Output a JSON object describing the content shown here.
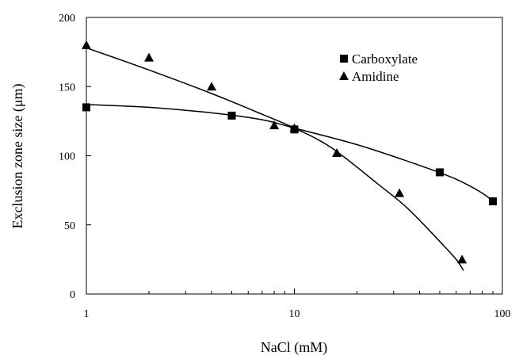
{
  "chart_data": {
    "type": "scatter",
    "title": "",
    "xlabel": "NaCl (mM)",
    "ylabel": "Exclusion zone size (μm)",
    "xscale": "log",
    "xlim": [
      1,
      100
    ],
    "ylim": [
      0,
      200
    ],
    "xticks": [
      1,
      10,
      100
    ],
    "xtick_labels": [
      "1",
      "10",
      "100"
    ],
    "yticks": [
      0,
      50,
      100,
      150,
      200
    ],
    "ytick_labels": [
      "0",
      "50",
      "100",
      "150",
      "200"
    ],
    "grid": false,
    "legend_position": "top-right",
    "series": [
      {
        "name": "Carboxylate",
        "marker": "square",
        "color": "#000000",
        "x": [
          1,
          5,
          10,
          50,
          90
        ],
        "y": [
          135,
          129,
          119,
          88,
          67
        ],
        "trend": {
          "x": [
            1,
            2,
            4,
            7,
            10,
            20,
            40,
            60,
            80,
            90
          ],
          "y": [
            137,
            135,
            131,
            126,
            120,
            108,
            93,
            83,
            73,
            67
          ]
        }
      },
      {
        "name": "Amidine",
        "marker": "triangle",
        "color": "#000000",
        "x": [
          1,
          2,
          4,
          8,
          10,
          16,
          32,
          64
        ],
        "y": [
          180,
          171,
          150,
          122,
          120,
          102,
          73,
          25
        ],
        "trend": {
          "x": [
            1,
            2,
            4,
            7,
            10,
            15,
            25,
            35,
            50,
            60,
            65
          ],
          "y": [
            178,
            162,
            145,
            130,
            120,
            106,
            80,
            62,
            38,
            25,
            17
          ]
        }
      }
    ]
  }
}
